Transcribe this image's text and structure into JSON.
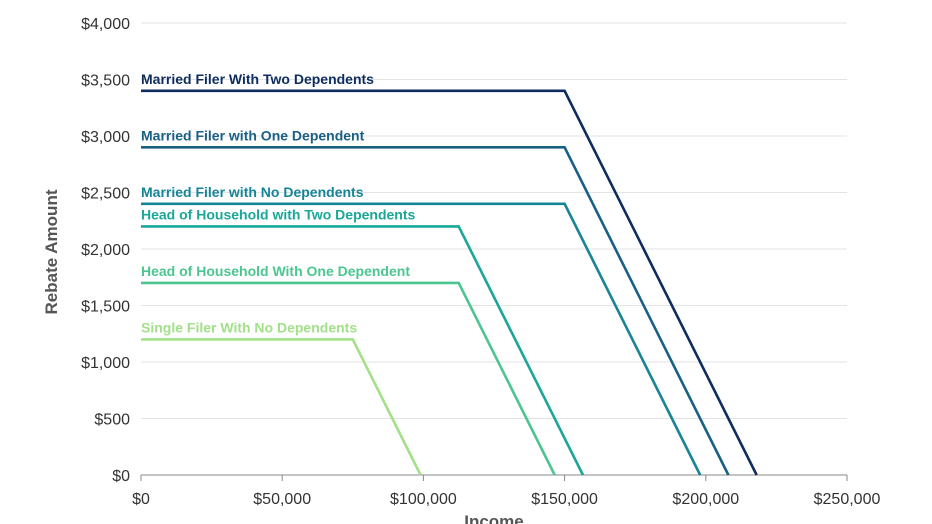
{
  "chart_data": {
    "type": "line",
    "title": "",
    "subtitle": "",
    "xlabel": "Income",
    "ylabel": "Rebate Amount",
    "xlim": [
      0,
      250000
    ],
    "ylim": [
      0,
      4000
    ],
    "x_ticks": [
      0,
      50000,
      100000,
      150000,
      200000,
      250000
    ],
    "x_tick_labels": [
      "$0",
      "$50,000",
      "$100,000",
      "$150,000",
      "$200,000",
      "$250,000"
    ],
    "y_ticks": [
      0,
      500,
      1000,
      1500,
      2000,
      2500,
      3000,
      3500,
      4000
    ],
    "y_tick_labels": [
      "$0",
      "$500",
      "$1,000",
      "$1,500",
      "$2,000",
      "$2,500",
      "$3,000",
      "$3,500",
      "$4,000"
    ],
    "grid": "horizontal",
    "legend": "inline labels",
    "series": [
      {
        "name": "Single Filer With No Dependents",
        "color": "#a3e08a",
        "x": [
          0,
          75000,
          99000
        ],
        "y": [
          1200,
          1200,
          0
        ]
      },
      {
        "name": "Head of Household With One Dependent",
        "color": "#4cc690",
        "x": [
          0,
          112500,
          146500
        ],
        "y": [
          1700,
          1700,
          0
        ]
      },
      {
        "name": "Head of Household with Two Dependents",
        "color": "#1aa79a",
        "x": [
          0,
          112500,
          156500
        ],
        "y": [
          2200,
          2200,
          0
        ]
      },
      {
        "name": "Married Filer with No Dependents",
        "color": "#168497",
        "x": [
          0,
          150000,
          198000
        ],
        "y": [
          2400,
          2400,
          0
        ]
      },
      {
        "name": "Married Filer with One Dependent",
        "color": "#1a5f86",
        "x": [
          0,
          150000,
          208000
        ],
        "y": [
          2900,
          2900,
          0
        ]
      },
      {
        "name": "Married Filer With Two Dependents",
        "color": "#0e2d5e",
        "x": [
          0,
          150000,
          218000
        ],
        "y": [
          3400,
          3400,
          0
        ]
      }
    ]
  }
}
